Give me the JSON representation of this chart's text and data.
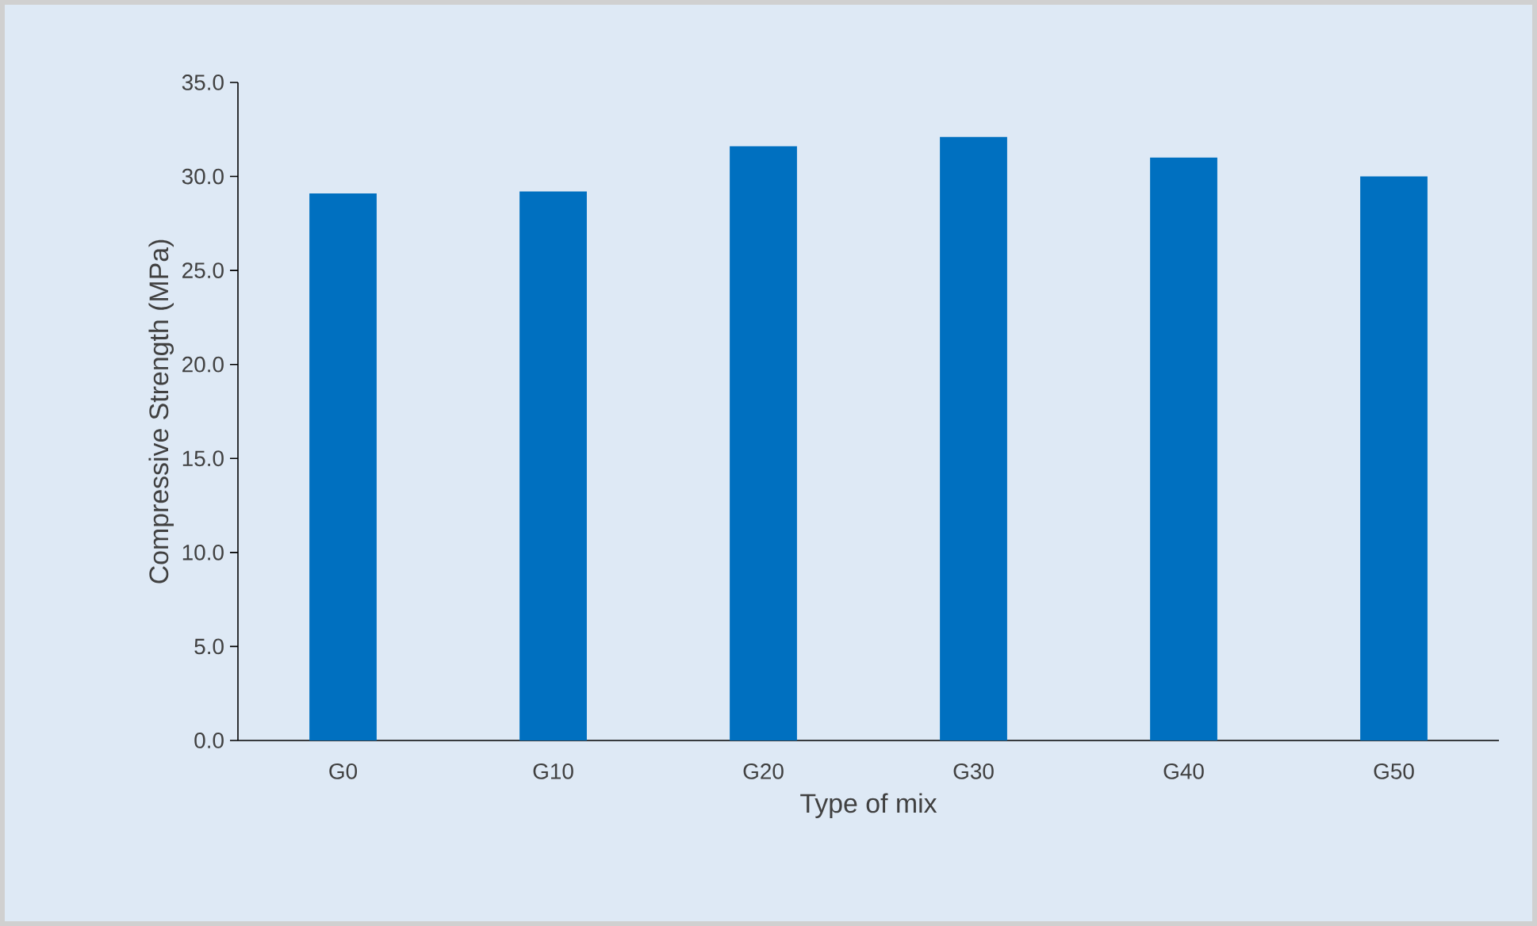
{
  "chart_data": {
    "type": "bar",
    "xlabel": "Type of mix",
    "ylabel": "Compressive Strength (MPa)",
    "categories": [
      "G0",
      "G10",
      "G20",
      "G30",
      "G40",
      "G50"
    ],
    "values": [
      29.1,
      29.2,
      31.6,
      32.1,
      31.0,
      30.0
    ],
    "color": "#0070c0",
    "ylim": [
      0,
      35
    ],
    "yticks": [
      {
        "value": 0,
        "label": "0.0"
      },
      {
        "value": 5,
        "label": "5.0"
      },
      {
        "value": 10,
        "label": "10.0"
      },
      {
        "value": 15,
        "label": "15.0"
      },
      {
        "value": 20,
        "label": "20.0"
      },
      {
        "value": 25,
        "label": "25.0"
      },
      {
        "value": 30,
        "label": "30.0"
      },
      {
        "value": 35,
        "label": "35.0"
      }
    ]
  }
}
